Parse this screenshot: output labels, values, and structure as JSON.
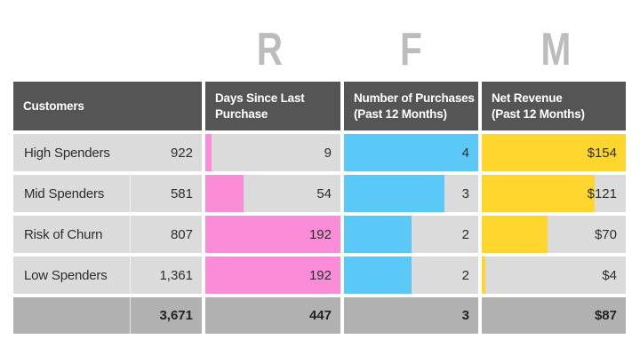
{
  "letters": {
    "recency": "R",
    "frequency": "F",
    "monetary": "M"
  },
  "colors": {
    "pink": "#FB8DD8",
    "blue": "#5BC9F8",
    "yellow": "#FED62E",
    "header_bg": "#555555",
    "cell_bg": "#DBDBDB",
    "total_bg": "#B1B1B1",
    "letter_gray": "#BCBCBC",
    "text_dark": "#2D2D2D",
    "header_text": "#FFFFFF"
  },
  "table": {
    "headers": [
      {
        "lines": [
          "Customers",
          ""
        ]
      },
      {
        "lines": [
          "Days Since Last",
          "Purchase"
        ]
      },
      {
        "lines": [
          "Number of Purchases",
          "(Past 12 Months)"
        ]
      },
      {
        "lines": [
          "Net Revenue",
          "(Past 12 Months)"
        ]
      }
    ],
    "bar_max": {
      "recency": 192,
      "frequency": 4,
      "revenue": 154
    },
    "rows": [
      {
        "name": "High Spenders",
        "count": "922",
        "recency": "9",
        "recency_value": 9,
        "frequency": "4",
        "frequency_value": 4,
        "revenue": "$154",
        "revenue_value": 154
      },
      {
        "name": "Mid Spenders",
        "count": "581",
        "recency": "54",
        "recency_value": 54,
        "frequency": "3",
        "frequency_value": 3,
        "revenue": "$121",
        "revenue_value": 121
      },
      {
        "name": "Risk of Churn",
        "count": "807",
        "recency": "192",
        "recency_value": 192,
        "frequency": "2",
        "frequency_value": 2,
        "revenue": "$70",
        "revenue_value": 70
      },
      {
        "name": "Low Spenders",
        "count": "1,361",
        "recency": "192",
        "recency_value": 192,
        "frequency": "2",
        "frequency_value": 2,
        "revenue": "$4",
        "revenue_value": 4
      }
    ],
    "totals": {
      "count": "3,671",
      "recency": "447",
      "frequency": "3",
      "revenue": "$87"
    }
  },
  "chart_data": {
    "type": "table",
    "title": "RFM",
    "group_letters": [
      "R",
      "F",
      "M"
    ],
    "columns": [
      "Customers",
      "Days Since Last Purchase",
      "Number of Purchases (Past 12 Months)",
      "Net Revenue (Past 12 Months)"
    ],
    "rows": [
      {
        "customer": "High Spenders",
        "customer_count": 922,
        "days_since_last_purchase": 9,
        "purchases_past_12_months": 4,
        "net_revenue_past_12_months": 154
      },
      {
        "customer": "Mid Spenders",
        "customer_count": 581,
        "days_since_last_purchase": 54,
        "purchases_past_12_months": 3,
        "net_revenue_past_12_months": 121
      },
      {
        "customer": "Risk of Churn",
        "customer_count": 807,
        "days_since_last_purchase": 192,
        "purchases_past_12_months": 2,
        "net_revenue_past_12_months": 70
      },
      {
        "customer": "Low Spenders",
        "customer_count": 1361,
        "days_since_last_purchase": 192,
        "purchases_past_12_months": 2,
        "net_revenue_past_12_months": 4
      }
    ],
    "totals_row": {
      "customer_count": 3671,
      "days_since_last_purchase": 447,
      "purchases_past_12_months": 3,
      "net_revenue_past_12_months": 87
    },
    "bar_encoding": {
      "recency_color": "#FB8DD8",
      "frequency_color": "#5BC9F8",
      "monetary_color": "#FED62E",
      "bars_scaled_to_column_max": true
    }
  }
}
